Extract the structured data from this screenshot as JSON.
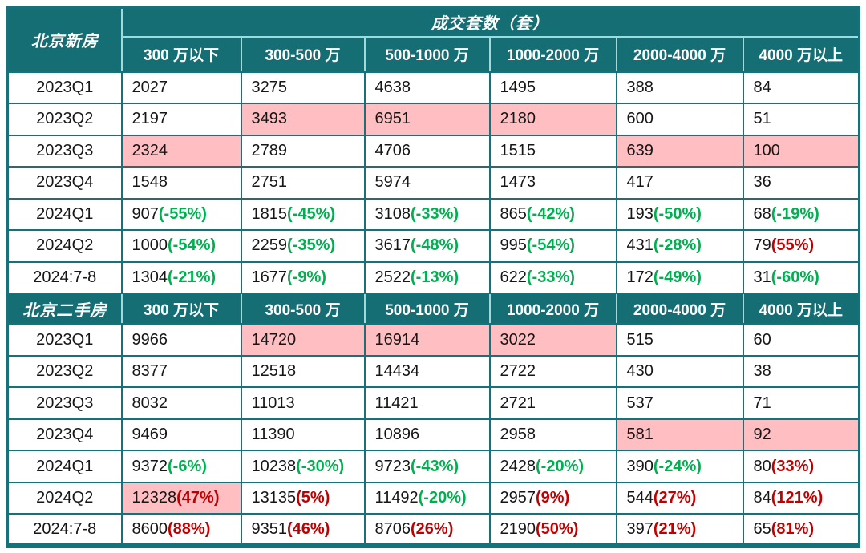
{
  "colors": {
    "header_teal": "#156E74",
    "grid_teal": "#15727A",
    "header_separator": "#A5D8DA",
    "highlight_pink": "#FFBEC2",
    "decrease_green": "#00AF50",
    "increase_red": "#C00000",
    "header_text": "#FFFFFF",
    "cell_text": "#161616"
  },
  "table": {
    "main_header": "成交套数（套）",
    "columns": [
      "300 万以下",
      "300-500 万",
      "500-1000 万",
      "1000-2000 万",
      "2000-4000 万",
      "4000 万以上"
    ],
    "sections": [
      {
        "label": "北京新房",
        "rows": [
          {
            "label": "2023Q1",
            "cells": [
              {
                "v": "2027"
              },
              {
                "v": "3275"
              },
              {
                "v": "4638"
              },
              {
                "v": "1495"
              },
              {
                "v": "388"
              },
              {
                "v": "84"
              }
            ]
          },
          {
            "label": "2023Q2",
            "cells": [
              {
                "v": "2197"
              },
              {
                "v": "3493",
                "hl": true
              },
              {
                "v": "6951",
                "hl": true
              },
              {
                "v": "2180",
                "hl": true
              },
              {
                "v": "600"
              },
              {
                "v": "51"
              }
            ]
          },
          {
            "label": "2023Q3",
            "cells": [
              {
                "v": "2324",
                "hl": true
              },
              {
                "v": "2789"
              },
              {
                "v": "4706"
              },
              {
                "v": "1515"
              },
              {
                "v": "639",
                "hl": true
              },
              {
                "v": "100",
                "hl": true
              }
            ]
          },
          {
            "label": "2023Q4",
            "cells": [
              {
                "v": "1548"
              },
              {
                "v": "2751"
              },
              {
                "v": "5974"
              },
              {
                "v": "1473"
              },
              {
                "v": "417"
              },
              {
                "v": "36"
              }
            ]
          },
          {
            "label": "2024Q1",
            "cells": [
              {
                "v": "907",
                "p": "(-55%)",
                "pc": "green"
              },
              {
                "v": "1815",
                "p": "(-45%)",
                "pc": "green"
              },
              {
                "v": "3108",
                "p": "(-33%)",
                "pc": "green"
              },
              {
                "v": "865",
                "p": "(-42%)",
                "pc": "green"
              },
              {
                "v": "193",
                "p": "(-50%)",
                "pc": "green"
              },
              {
                "v": "68",
                "p": "(-19%)",
                "pc": "green"
              }
            ]
          },
          {
            "label": "2024Q2",
            "cells": [
              {
                "v": "1000",
                "p": "(-54%)",
                "pc": "green"
              },
              {
                "v": "2259",
                "p": "(-35%)",
                "pc": "green"
              },
              {
                "v": "3617",
                "p": "(-48%)",
                "pc": "green"
              },
              {
                "v": "995",
                "p": "(-54%)",
                "pc": "green"
              },
              {
                "v": "431",
                "p": "(-28%)",
                "pc": "green"
              },
              {
                "v": "79",
                "p": "(55%)",
                "pc": "red"
              }
            ]
          },
          {
            "label": "2024:7-8",
            "cells": [
              {
                "v": "1304",
                "p": "(-21%)",
                "pc": "green"
              },
              {
                "v": "1677",
                "p": "(-9%)",
                "pc": "green"
              },
              {
                "v": "2522",
                "p": "(-13%)",
                "pc": "green"
              },
              {
                "v": "622",
                "p": "(-33%)",
                "pc": "green"
              },
              {
                "v": "172",
                "p": "(-49%)",
                "pc": "green"
              },
              {
                "v": "31",
                "p": "(-60%)",
                "pc": "green"
              }
            ]
          }
        ]
      },
      {
        "label": "北京二手房",
        "rows": [
          {
            "label": "2023Q1",
            "cells": [
              {
                "v": "9966"
              },
              {
                "v": "14720",
                "hl": true
              },
              {
                "v": "16914",
                "hl": true
              },
              {
                "v": "3022",
                "hl": true
              },
              {
                "v": "515"
              },
              {
                "v": "60"
              }
            ]
          },
          {
            "label": "2023Q2",
            "cells": [
              {
                "v": "8377"
              },
              {
                "v": "12518"
              },
              {
                "v": "14434"
              },
              {
                "v": "2722"
              },
              {
                "v": "430"
              },
              {
                "v": "38"
              }
            ]
          },
          {
            "label": "2023Q3",
            "cells": [
              {
                "v": "8032"
              },
              {
                "v": "11013"
              },
              {
                "v": "11421"
              },
              {
                "v": "2721"
              },
              {
                "v": "537"
              },
              {
                "v": "71"
              }
            ]
          },
          {
            "label": "2023Q4",
            "cells": [
              {
                "v": "9469"
              },
              {
                "v": "11390"
              },
              {
                "v": "10896"
              },
              {
                "v": "2958"
              },
              {
                "v": "581",
                "hl": true
              },
              {
                "v": "92",
                "hl": true
              }
            ]
          },
          {
            "label": "2024Q1",
            "cells": [
              {
                "v": "9372",
                "p": "(-6%)",
                "pc": "green"
              },
              {
                "v": "10238",
                "p": "(-30%)",
                "pc": "green"
              },
              {
                "v": "9723",
                "p": "(-43%)",
                "pc": "green"
              },
              {
                "v": "2428",
                "p": "(-20%)",
                "pc": "green"
              },
              {
                "v": "390",
                "p": "(-24%)",
                "pc": "green"
              },
              {
                "v": "80",
                "p": "(33%)",
                "pc": "red"
              }
            ]
          },
          {
            "label": "2024Q2",
            "cells": [
              {
                "v": "12328",
                "p": "(47%)",
                "pc": "red",
                "hl": true
              },
              {
                "v": "13135",
                "p": "(5%)",
                "pc": "red"
              },
              {
                "v": "11492",
                "p": "(-20%)",
                "pc": "green"
              },
              {
                "v": "2957",
                "p": "(9%)",
                "pc": "red"
              },
              {
                "v": "544",
                "p": "(27%)",
                "pc": "red"
              },
              {
                "v": "84",
                "p": "(121%)",
                "pc": "red"
              }
            ]
          },
          {
            "label": "2024:7-8",
            "cells": [
              {
                "v": "8600",
                "p": "(88%)",
                "pc": "red"
              },
              {
                "v": "9351",
                "p": "(46%)",
                "pc": "red"
              },
              {
                "v": "8706",
                "p": "(26%)",
                "pc": "red"
              },
              {
                "v": "2190",
                "p": "(50%)",
                "pc": "red"
              },
              {
                "v": "397",
                "p": "(21%)",
                "pc": "red"
              },
              {
                "v": "65",
                "p": "(81%)",
                "pc": "red"
              }
            ]
          }
        ]
      }
    ]
  },
  "chart_data": {
    "type": "table",
    "title": "成交套数（套）",
    "columns": [
      "300万以下",
      "300-500万",
      "500-1000万",
      "1000-2000万",
      "2000-4000万",
      "4000万以上"
    ],
    "tables": [
      {
        "name": "北京新房",
        "periods": [
          "2023Q1",
          "2023Q2",
          "2023Q3",
          "2023Q4",
          "2024Q1",
          "2024Q2",
          "2024:7-8"
        ],
        "values": [
          [
            2027,
            3275,
            4638,
            1495,
            388,
            84
          ],
          [
            2197,
            3493,
            6951,
            2180,
            600,
            51
          ],
          [
            2324,
            2789,
            4706,
            1515,
            639,
            100
          ],
          [
            1548,
            2751,
            5974,
            1473,
            417,
            36
          ],
          [
            907,
            1815,
            3108,
            865,
            193,
            68
          ],
          [
            1000,
            2259,
            3617,
            995,
            431,
            79
          ],
          [
            1304,
            1677,
            2522,
            622,
            172,
            31
          ]
        ],
        "pct_change": [
          [
            null,
            null,
            null,
            null,
            null,
            null
          ],
          [
            null,
            null,
            null,
            null,
            null,
            null
          ],
          [
            null,
            null,
            null,
            null,
            null,
            null
          ],
          [
            null,
            null,
            null,
            null,
            null,
            null
          ],
          [
            "-55%",
            "-45%",
            "-33%",
            "-42%",
            "-50%",
            "-19%"
          ],
          [
            "-54%",
            "-35%",
            "-48%",
            "-54%",
            "-28%",
            "55%"
          ],
          [
            "-21%",
            "-9%",
            "-13%",
            "-33%",
            "-49%",
            "-60%"
          ]
        ]
      },
      {
        "name": "北京二手房",
        "periods": [
          "2023Q1",
          "2023Q2",
          "2023Q3",
          "2023Q4",
          "2024Q1",
          "2024Q2",
          "2024:7-8"
        ],
        "values": [
          [
            9966,
            14720,
            16914,
            3022,
            515,
            60
          ],
          [
            8377,
            12518,
            14434,
            2722,
            430,
            38
          ],
          [
            8032,
            11013,
            11421,
            2721,
            537,
            71
          ],
          [
            9469,
            11390,
            10896,
            2958,
            581,
            92
          ],
          [
            9372,
            10238,
            9723,
            2428,
            390,
            80
          ],
          [
            12328,
            13135,
            11492,
            2957,
            544,
            84
          ],
          [
            8600,
            9351,
            8706,
            2190,
            397,
            65
          ]
        ],
        "pct_change": [
          [
            null,
            null,
            null,
            null,
            null,
            null
          ],
          [
            null,
            null,
            null,
            null,
            null,
            null
          ],
          [
            null,
            null,
            null,
            null,
            null,
            null
          ],
          [
            null,
            null,
            null,
            null,
            null,
            null
          ],
          [
            "-6%",
            "-30%",
            "-43%",
            "-20%",
            "-24%",
            "33%"
          ],
          [
            "47%",
            "5%",
            "-20%",
            "9%",
            "27%",
            "121%"
          ],
          [
            "88%",
            "46%",
            "26%",
            "50%",
            "21%",
            "81%"
          ]
        ]
      }
    ]
  }
}
